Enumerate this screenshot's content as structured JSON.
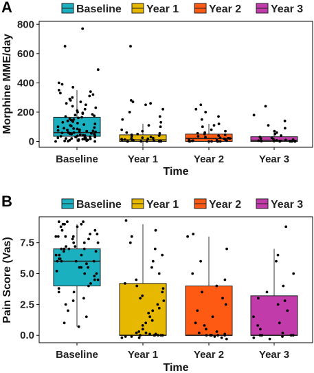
{
  "chart_data": [
    {
      "type": "box",
      "panel_label": "A",
      "legend_title": "",
      "legend_position": "top",
      "xlabel": "Time",
      "ylabel": "Morphine MME/day",
      "ylim": [
        -40,
        820
      ],
      "yticks": [
        0,
        200,
        400,
        600,
        800
      ],
      "grid": false,
      "categories": [
        "Baseline",
        "Year 1",
        "Year 2",
        "Year 3"
      ],
      "colors": [
        "#1AB0C0",
        "#E6B800",
        "#FF5A14",
        "#C23BAA"
      ],
      "boxes": [
        {
          "q1": 35,
          "median": 60,
          "q3": 165,
          "whisker_low": 0,
          "whisker_high": 350
        },
        {
          "q1": 0,
          "median": 10,
          "q3": 45,
          "whisker_low": -35,
          "whisker_high": 120
        },
        {
          "q1": 0,
          "median": 20,
          "q3": 50,
          "whisker_low": -15,
          "whisker_high": 120
        },
        {
          "q1": 0,
          "median": 8,
          "q3": 32,
          "whisker_low": -12,
          "whisker_high": 75
        }
      ],
      "points": [
        [
          0,
          0,
          2,
          3,
          5,
          5,
          8,
          10,
          10,
          12,
          15,
          15,
          18,
          20,
          20,
          22,
          25,
          25,
          28,
          30,
          30,
          32,
          35,
          38,
          40,
          40,
          42,
          45,
          48,
          50,
          50,
          52,
          55,
          55,
          58,
          60,
          60,
          62,
          65,
          68,
          70,
          72,
          75,
          78,
          80,
          85,
          88,
          90,
          95,
          100,
          105,
          110,
          115,
          120,
          125,
          130,
          135,
          140,
          145,
          150,
          155,
          160,
          165,
          170,
          175,
          180,
          185,
          190,
          195,
          200,
          210,
          220,
          230,
          240,
          250,
          260,
          270,
          280,
          290,
          300,
          310,
          320,
          330,
          340,
          350,
          370,
          390,
          400,
          490,
          650,
          770
        ],
        [
          0,
          0,
          0,
          0,
          0,
          0,
          2,
          3,
          5,
          5,
          8,
          10,
          10,
          12,
          15,
          18,
          20,
          22,
          25,
          30,
          35,
          40,
          45,
          50,
          55,
          60,
          70,
          80,
          100,
          110,
          130,
          150,
          170,
          200,
          220,
          250,
          260,
          270,
          280,
          650
        ],
        [
          0,
          0,
          0,
          0,
          0,
          0,
          2,
          3,
          5,
          5,
          8,
          10,
          12,
          15,
          18,
          20,
          22,
          25,
          30,
          35,
          40,
          45,
          50,
          55,
          60,
          70,
          80,
          100,
          110,
          120,
          150,
          170,
          200,
          220,
          250
        ],
        [
          0,
          0,
          0,
          0,
          0,
          2,
          3,
          5,
          5,
          8,
          10,
          12,
          15,
          20,
          25,
          30,
          40,
          50,
          60,
          70,
          90,
          110,
          140,
          180,
          240
        ]
      ]
    },
    {
      "type": "box",
      "panel_label": "B",
      "legend_title": "",
      "legend_position": "top",
      "xlabel": "Time",
      "ylabel": "Pain Score (Vas)",
      "ylim": [
        -0.6,
        9.6
      ],
      "yticks": [
        0.0,
        2.5,
        5.0,
        7.5
      ],
      "yticklabels": [
        "0.0",
        "2.5",
        "5.0",
        "7.5"
      ],
      "grid": false,
      "categories": [
        "Baseline",
        "Year 1",
        "Year 2",
        "Year 3"
      ],
      "colors": [
        "#1AB0C0",
        "#E6B800",
        "#FF5A14",
        "#C23BAA"
      ],
      "boxes": [
        {
          "q1": 4.0,
          "median": 6.0,
          "q3": 7.0,
          "whisker_low": 0.7,
          "whisker_high": 9.0
        },
        {
          "q1": 0.0,
          "median": 0.0,
          "q3": 4.2,
          "whisker_low": 0.0,
          "whisker_high": 9.0
        },
        {
          "q1": 0.0,
          "median": 0.0,
          "q3": 4.0,
          "whisker_low": 0.0,
          "whisker_high": 8.0
        },
        {
          "q1": 0.0,
          "median": 0.0,
          "q3": 3.2,
          "whisker_low": 0.0,
          "whisker_high": 7.0
        }
      ],
      "points": [
        [
          0.7,
          1.0,
          1.5,
          2.0,
          2.5,
          3.0,
          3.5,
          3.8,
          4.0,
          4.2,
          4.5,
          4.8,
          5.0,
          5.0,
          5.2,
          5.5,
          5.5,
          5.8,
          6.0,
          6.0,
          6.0,
          6.2,
          6.2,
          6.5,
          6.5,
          6.5,
          6.8,
          6.8,
          7.0,
          7.0,
          7.0,
          7.2,
          7.2,
          7.5,
          7.5,
          7.5,
          7.8,
          7.8,
          8.0,
          8.0,
          8.0,
          8.2,
          8.2,
          8.5,
          8.5,
          8.8,
          8.8,
          9.0,
          9.0,
          9.0,
          9.2,
          9.2,
          9.2,
          5.5,
          6.0,
          4.5,
          3.5,
          2.8,
          7.0,
          8.0
        ],
        [
          -0.2,
          -0.2,
          -0.1,
          -0.1,
          0.0,
          0.0,
          0.0,
          0.0,
          0.0,
          0.0,
          0.1,
          0.1,
          0.2,
          0.2,
          0.3,
          0.5,
          0.8,
          1.0,
          1.2,
          1.5,
          1.8,
          2.0,
          2.2,
          2.5,
          2.8,
          3.0,
          3.2,
          3.5,
          3.8,
          4.0,
          4.2,
          4.5,
          5.0,
          5.5,
          6.0,
          6.5,
          7.0,
          7.5,
          8.0,
          8.5,
          9.3
        ],
        [
          -0.3,
          -0.2,
          -0.1,
          0.0,
          0.0,
          0.0,
          0.0,
          0.0,
          0.1,
          0.2,
          0.3,
          0.5,
          0.8,
          1.0,
          1.5,
          2.0,
          2.5,
          3.0,
          3.5,
          4.0,
          4.5,
          5.0,
          6.0,
          7.0,
          8.0,
          8.2
        ],
        [
          -0.3,
          -0.2,
          -0.1,
          0.0,
          0.0,
          0.0,
          0.0,
          0.2,
          0.5,
          0.8,
          1.0,
          1.5,
          2.0,
          2.5,
          2.8,
          3.0,
          3.5,
          4.0,
          5.0,
          6.0,
          6.5,
          8.8
        ]
      ]
    }
  ]
}
